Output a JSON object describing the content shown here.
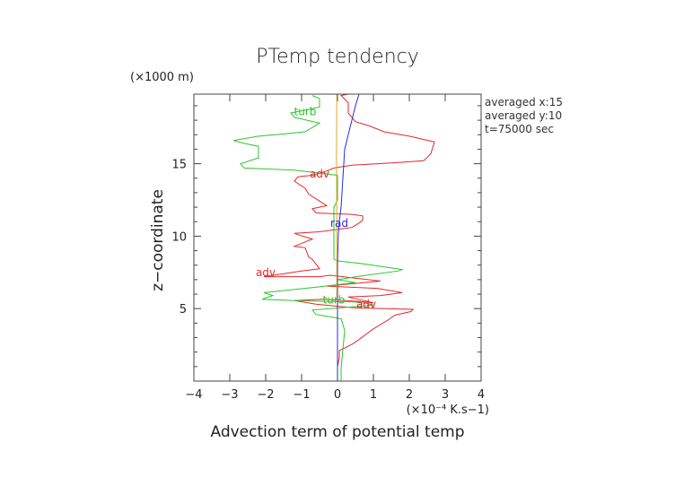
{
  "chart_data": {
    "type": "line",
    "title": "PTemp tendency",
    "xlabel": "Advection term of potential temp",
    "ylabel": "z−coordinate",
    "x_unit": "(×10⁻⁴ K.s−1)",
    "y_unit": "(×1000 m)",
    "xlim": [
      -4,
      4
    ],
    "ylim": [
      0,
      19.8
    ],
    "xticks": [
      -4,
      -3,
      -2,
      -1,
      0,
      1,
      2,
      3,
      4
    ],
    "yticks": [
      5,
      10,
      15
    ],
    "info_lines": [
      "averaged  x:15",
      "averaged  y:10",
      "t=75000 sec"
    ],
    "series": [
      {
        "name": "adv",
        "color": "#e8262b",
        "points": [
          [
            0,
            0
          ],
          [
            0,
            1
          ],
          [
            0.05,
            1.6
          ],
          [
            0.05,
            2.1
          ],
          [
            0.45,
            2.6
          ],
          [
            1,
            3.6
          ],
          [
            1.4,
            4.2
          ],
          [
            1.6,
            4.55
          ],
          [
            2.05,
            4.8
          ],
          [
            2.1,
            4.95
          ],
          [
            0.5,
            5.05
          ],
          [
            -0.6,
            5.3
          ],
          [
            -1.2,
            5.55
          ],
          [
            -0.4,
            5.65
          ],
          [
            0.6,
            5.5
          ],
          [
            1,
            5.4
          ],
          [
            0.3,
            5.8
          ],
          [
            1.2,
            5.9
          ],
          [
            1.8,
            6.1
          ],
          [
            1.1,
            6.4
          ],
          [
            -0.3,
            6.55
          ],
          [
            1.2,
            6.9
          ],
          [
            -0.2,
            7.3
          ],
          [
            -0.5,
            7.2
          ],
          [
            -2.05,
            7.2
          ],
          [
            -1,
            7.6
          ],
          [
            -0.5,
            7.75
          ],
          [
            -0.7,
            8.4
          ],
          [
            -0.8,
            8.55
          ],
          [
            -0.9,
            9.2
          ],
          [
            -1.2,
            9.3
          ],
          [
            -0.7,
            9.8
          ],
          [
            -1.1,
            10.1
          ],
          [
            -1.2,
            10.2
          ],
          [
            -0.5,
            10.3
          ],
          [
            0.4,
            10.6
          ],
          [
            0.6,
            10.9
          ],
          [
            0.7,
            11.1
          ],
          [
            0.7,
            11.4
          ],
          [
            0.4,
            11.5
          ],
          [
            -0.6,
            11.6
          ],
          [
            -0.7,
            11.9
          ],
          [
            -0.3,
            12.1
          ],
          [
            -0.8,
            12.9
          ],
          [
            -0.9,
            13.3
          ],
          [
            -1.2,
            13.8
          ],
          [
            -1.1,
            14.1
          ],
          [
            -0.7,
            14.2
          ],
          [
            -0.6,
            14.25
          ],
          [
            -0.3,
            14.5
          ],
          [
            -0.1,
            14.7
          ],
          [
            0.4,
            14.9
          ],
          [
            1.5,
            15.05
          ],
          [
            2.4,
            15.2
          ],
          [
            2.6,
            15.7
          ],
          [
            2.7,
            16.5
          ],
          [
            2,
            16.9
          ],
          [
            1.3,
            17.2
          ],
          [
            0.9,
            17.6
          ],
          [
            0.5,
            17.9
          ],
          [
            0.3,
            18.5
          ],
          [
            0.3,
            19.2
          ],
          [
            0.1,
            19.7
          ],
          [
            0.3,
            19.8
          ]
        ],
        "labels": [
          [
            -0.5,
            14.3
          ],
          [
            -2.0,
            7.5
          ],
          [
            0.8,
            5.3
          ]
        ]
      },
      {
        "name": "turb",
        "color": "#2ec52e",
        "points": [
          [
            0.1,
            0
          ],
          [
            0.1,
            0.8
          ],
          [
            0.15,
            2.2
          ],
          [
            0.2,
            3.5
          ],
          [
            0.1,
            4.3
          ],
          [
            -0.6,
            4.6
          ],
          [
            -0.7,
            4.9
          ],
          [
            0.3,
            5.1
          ],
          [
            1,
            5.25
          ],
          [
            0.8,
            5.35
          ],
          [
            0.5,
            5.45
          ],
          [
            -1.2,
            5.55
          ],
          [
            -2.1,
            5.65
          ],
          [
            -1.8,
            5.9
          ],
          [
            -2.05,
            6.1
          ],
          [
            -0.5,
            6.5
          ],
          [
            0.5,
            6.8
          ],
          [
            0,
            7.0
          ],
          [
            0.8,
            7.3
          ],
          [
            1.7,
            7.6
          ],
          [
            1.8,
            7.7
          ],
          [
            0.7,
            8.1
          ],
          [
            0,
            8.3
          ],
          [
            -0.1,
            8.4
          ],
          [
            -0.1,
            12
          ],
          [
            0,
            12.5
          ],
          [
            0,
            14.2
          ],
          [
            -1.2,
            14.55
          ],
          [
            -2.6,
            14.7
          ],
          [
            -2.7,
            15.0
          ],
          [
            -2.2,
            15.4
          ],
          [
            -2.2,
            16.2
          ],
          [
            -2.6,
            16.4
          ],
          [
            -2.9,
            16.6
          ],
          [
            -2.2,
            16.9
          ],
          [
            -1.5,
            17.05
          ],
          [
            -0.9,
            17.2
          ],
          [
            -0.5,
            17.8
          ],
          [
            -1.2,
            18.2
          ],
          [
            -1.3,
            18.5
          ],
          [
            -0.9,
            18.7
          ],
          [
            -0.5,
            18.9
          ],
          [
            -0.5,
            19.5
          ],
          [
            -0.7,
            19.7
          ]
        ],
        "labels": [
          [
            -0.9,
            18.6
          ],
          [
            -0.1,
            5.6
          ]
        ]
      },
      {
        "name": "rad",
        "color": "#2a2ed6",
        "points": [
          [
            0,
            0
          ],
          [
            0,
            6
          ],
          [
            0,
            8
          ],
          [
            0.02,
            10
          ],
          [
            0.05,
            11
          ],
          [
            0.1,
            12
          ],
          [
            0.15,
            14
          ],
          [
            0.2,
            16
          ],
          [
            0.3,
            17
          ],
          [
            0.4,
            18
          ],
          [
            0.5,
            19
          ],
          [
            0.6,
            19.8
          ]
        ],
        "labels": [
          [
            0.05,
            10.9
          ]
        ]
      },
      {
        "name": "",
        "color": "#e8a52a",
        "points": [
          [
            -0.02,
            5.5
          ],
          [
            -0.02,
            11
          ],
          [
            -0.03,
            15.5
          ],
          [
            -0.02,
            19.8
          ]
        ],
        "labels": []
      }
    ]
  }
}
